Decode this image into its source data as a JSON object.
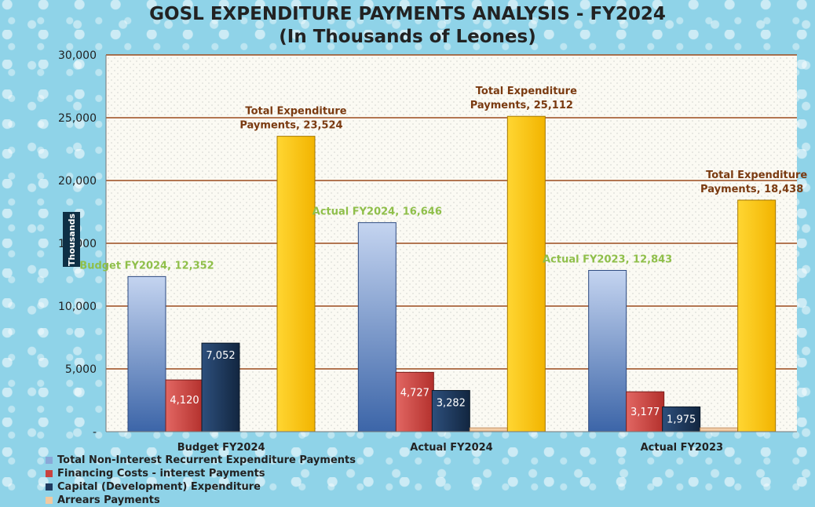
{
  "chart_data": {
    "type": "bar",
    "title": "GOSL EXPENDITURE PAYMENTS ANALYSIS - FY2024",
    "subtitle": "(In Thousands of Leones)",
    "ylabel": "Thousands",
    "ylim": [
      0,
      30000
    ],
    "yticks": [
      "-",
      "5,000",
      "10,000",
      "15,000",
      "20,000",
      "25,000",
      "30,000"
    ],
    "categories": [
      "Budget FY2024",
      "Actual FY2024",
      "Actual FY2023"
    ],
    "series": [
      {
        "name": "Total Non-Interest Recurrent Expenditure Payments",
        "values": [
          12352,
          16646,
          12843
        ],
        "color": "#8aa8d8"
      },
      {
        "name": "Financing Costs - interest Payments",
        "values": [
          4120,
          4727,
          3177
        ],
        "color": "#c9423f"
      },
      {
        "name": "Capital (Development) Expenditure",
        "values": [
          7052,
          3282,
          1975
        ],
        "color": "#1f3a5f"
      },
      {
        "name": "Arrears Payments",
        "values": [
          0,
          300,
          300
        ],
        "color": "#f2c9a0"
      },
      {
        "name": "Total Expenditure Payments",
        "values": [
          23524,
          25112,
          18438
        ],
        "color": "#ffc800"
      }
    ],
    "data_labels": {
      "recurrent": [
        "Budget FY2024,  12,352",
        "Actual FY2024,  16,646",
        "Actual FY2023,  12,843"
      ],
      "interest": [
        "4,120",
        "4,727",
        "3,177"
      ],
      "capital": [
        "7,052",
        "3,282",
        "1,975"
      ],
      "total_line1": [
        "Total Expenditure",
        "Total Expenditure",
        "Total Expenditure"
      ],
      "total_line2": [
        "Payments,  23,524",
        "Payments,  25,112",
        "Payments,  18,438"
      ]
    },
    "legend_visible": [
      "Total Non-Interest Recurrent Expenditure Payments",
      "Financing Costs - interest Payments",
      "Capital (Development) Expenditure",
      "Arrears Payments"
    ],
    "grid": true,
    "legend_position": "bottom-left"
  }
}
